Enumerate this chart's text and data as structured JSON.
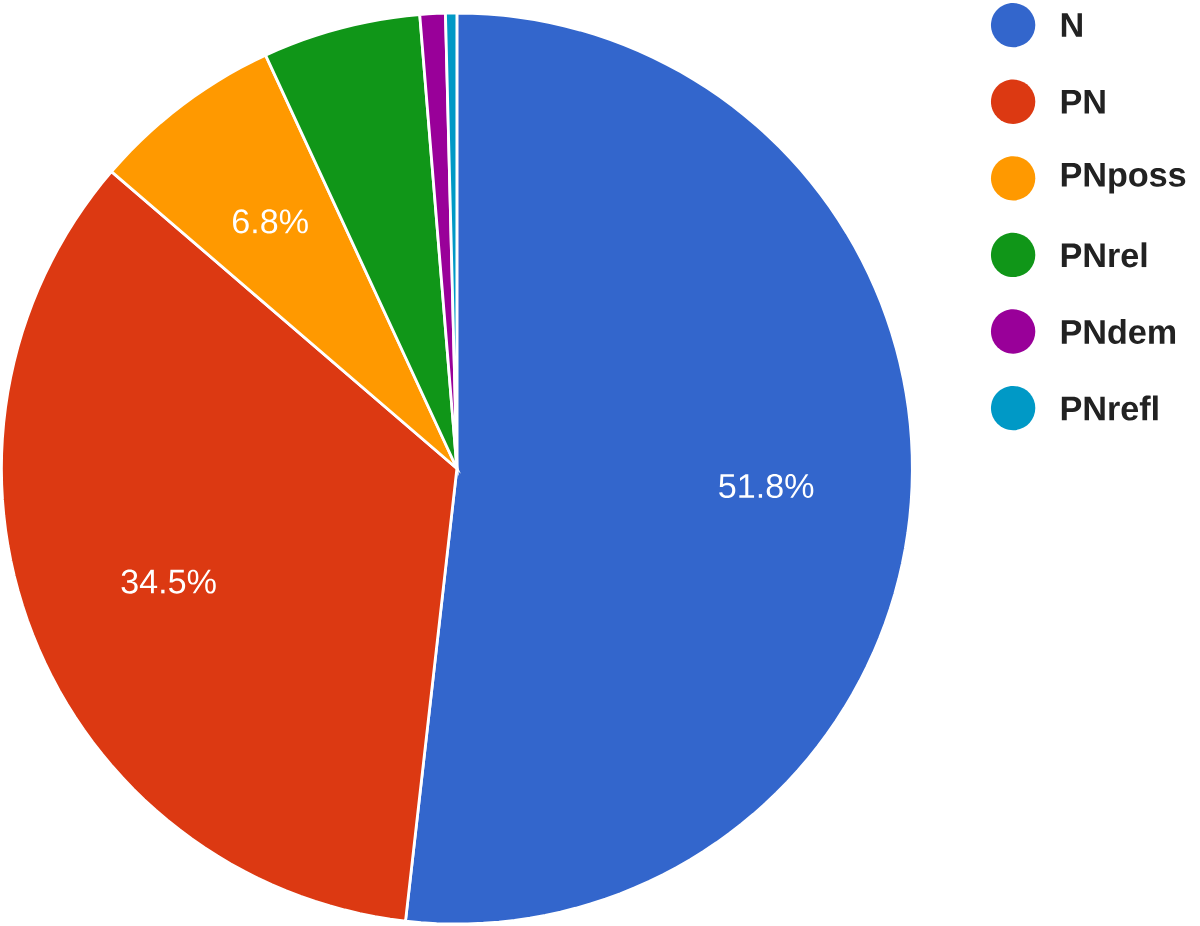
{
  "chart_data": {
    "type": "pie",
    "categories": [
      "N",
      "PN",
      "PNposs",
      "PNrel",
      "PNdem",
      "PNrefl"
    ],
    "values": [
      51.8,
      34.5,
      6.8,
      5.6,
      0.9,
      0.4
    ],
    "colors": [
      "#3366cc",
      "#dc3912",
      "#ff9900",
      "#109618",
      "#990099",
      "#0099c6"
    ],
    "value_labels": [
      "51.8%",
      "34.5%",
      "6.8%",
      null,
      null,
      null
    ],
    "legend": "right"
  }
}
